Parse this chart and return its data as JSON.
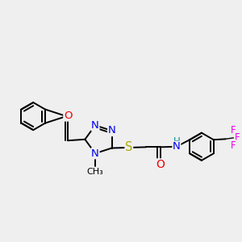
{
  "bg_color": "#efefef",
  "bond_color": "#000000",
  "bond_width": 1.4,
  "atom_colors": {
    "N": "#0000ee",
    "O": "#ee0000",
    "S": "#aaaa00",
    "F": "#ee00ee",
    "H": "#008888",
    "C": "#000000"
  },
  "font_size": 8.5,
  "figsize": [
    3.0,
    3.0
  ],
  "dpi": 100
}
